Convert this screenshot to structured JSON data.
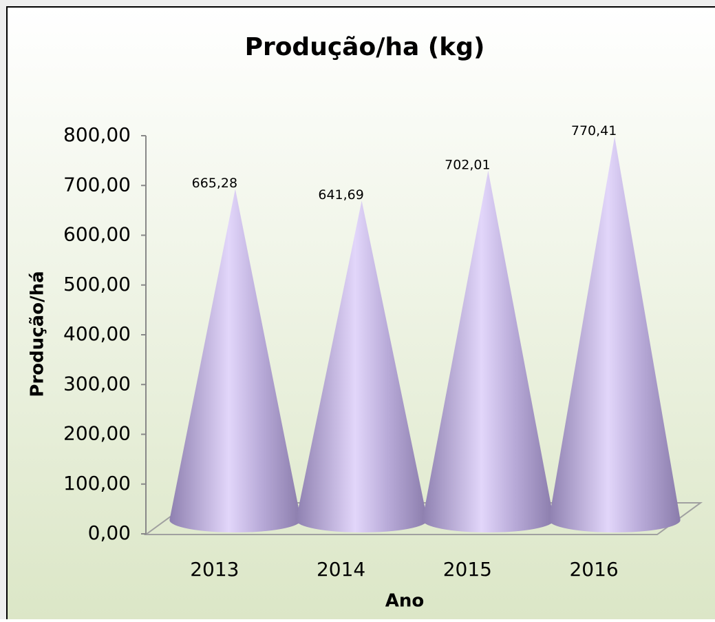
{
  "chart_data": {
    "type": "cone",
    "title": "Produção/ha (kg)",
    "x_label": "Ano",
    "y_label": "Produção/há",
    "categories": [
      "2013",
      "2014",
      "2015",
      "2016"
    ],
    "values": [
      665.28,
      641.69,
      702.01,
      770.41
    ],
    "value_labels": [
      "665,28",
      "641,69",
      "702,01",
      "770,41"
    ],
    "color": "#b4a6d8",
    "ylim": [
      0,
      800
    ],
    "yticks": [
      {
        "value": 0,
        "label": "0,00"
      },
      {
        "value": 100,
        "label": "100,00"
      },
      {
        "value": 200,
        "label": "200,00"
      },
      {
        "value": 300,
        "label": "300,00"
      },
      {
        "value": 400,
        "label": "400,00"
      },
      {
        "value": 500,
        "label": "500,00"
      },
      {
        "value": 600,
        "label": "600,00"
      },
      {
        "value": 700,
        "label": "700,00"
      },
      {
        "value": 800,
        "label": "800,00"
      }
    ],
    "grid": false
  }
}
